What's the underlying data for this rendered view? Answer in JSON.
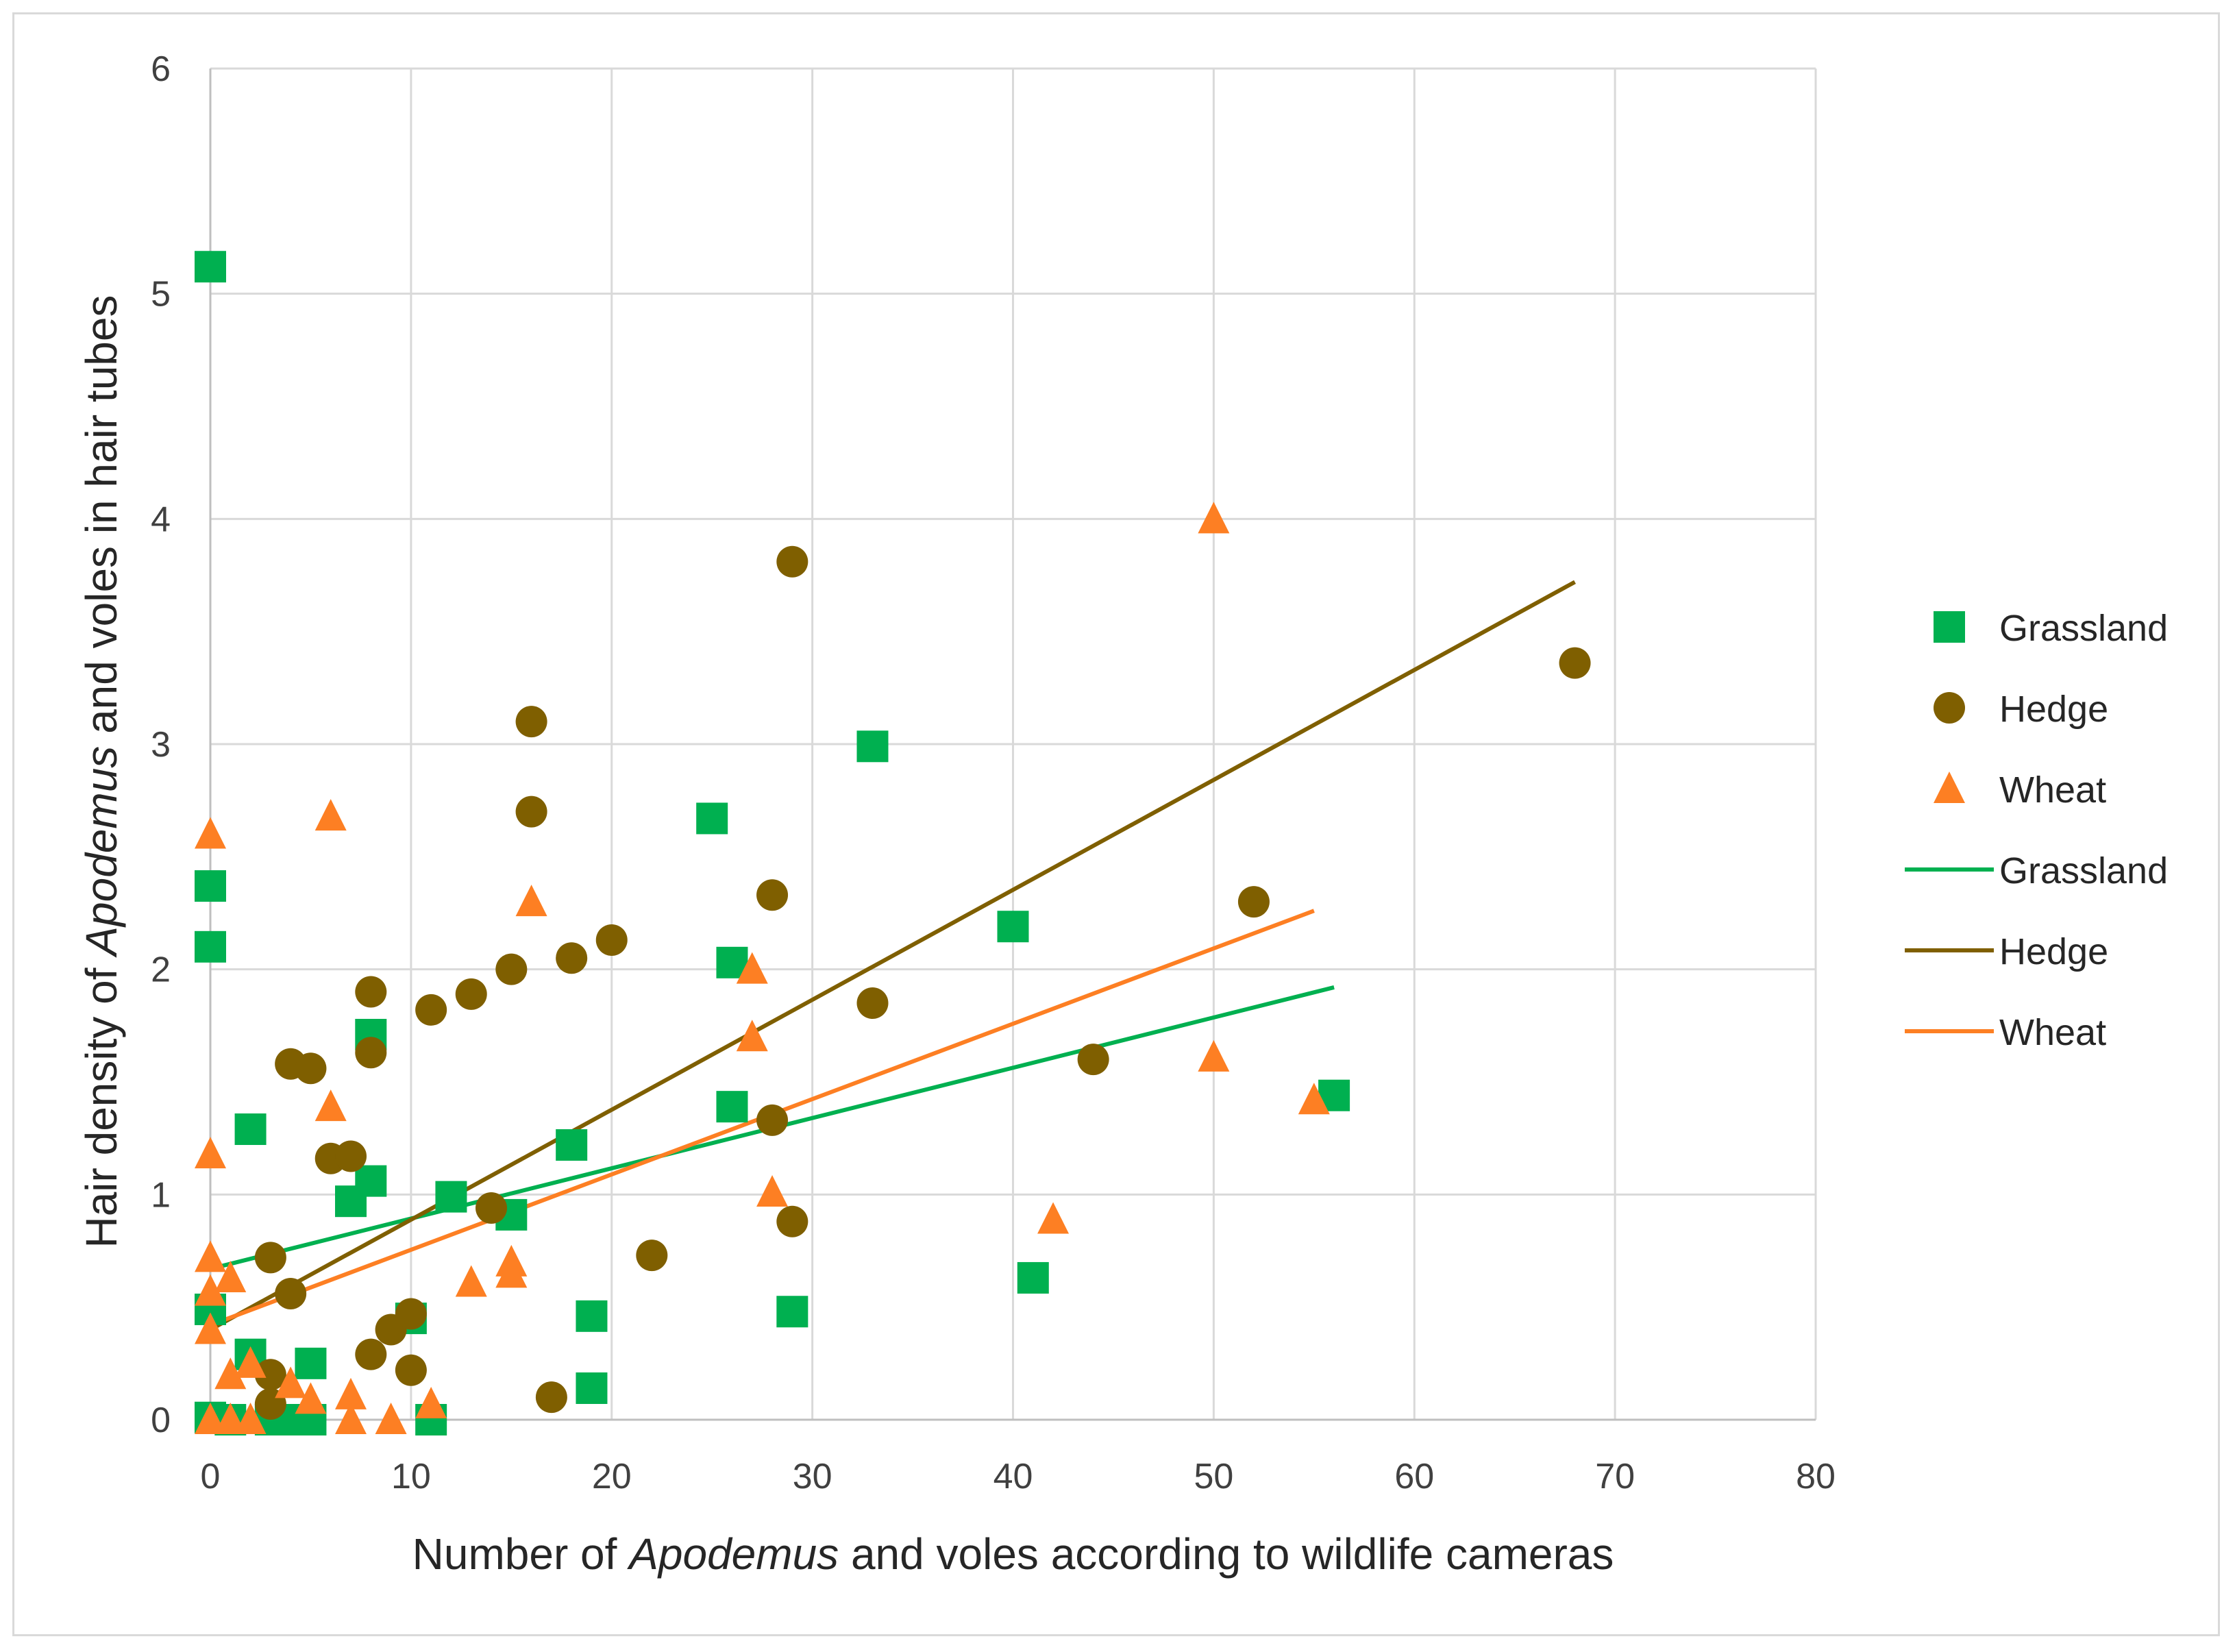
{
  "chart_data": {
    "type": "scatter",
    "title": "",
    "xlabel_parts": [
      {
        "text": "Number of ",
        "italic": false
      },
      {
        "text": "Apodemus",
        "italic": true
      },
      {
        "text": " and voles according to wildlife cameras",
        "italic": false
      }
    ],
    "ylabel_parts": [
      {
        "text": "Hair density of ",
        "italic": false
      },
      {
        "text": "Apodemus",
        "italic": true
      },
      {
        "text": " and voles in hair tubes",
        "italic": false
      }
    ],
    "xlim": [
      0,
      80
    ],
    "ylim": [
      0,
      6
    ],
    "xticks": [
      "0",
      "10",
      "20",
      "30",
      "40",
      "50",
      "60",
      "70",
      "80"
    ],
    "yticks": [
      "0",
      "1",
      "2",
      "3",
      "4",
      "5",
      "6"
    ],
    "grid": true,
    "legend_position": "right",
    "series": [
      {
        "name": "Grassland",
        "marker": "square",
        "color": "#00b050",
        "points": [
          [
            0,
            5.12
          ],
          [
            0,
            2.37
          ],
          [
            0,
            2.1
          ],
          [
            0,
            0.49
          ],
          [
            0,
            0.01
          ],
          [
            1,
            0.0
          ],
          [
            2,
            1.29
          ],
          [
            2,
            0.29
          ],
          [
            3,
            0.0
          ],
          [
            4,
            0.0
          ],
          [
            5,
            0.25
          ],
          [
            5,
            0.0
          ],
          [
            7,
            0.97
          ],
          [
            8,
            1.71
          ],
          [
            8,
            1.06
          ],
          [
            10,
            0.45
          ],
          [
            11,
            0.0
          ],
          [
            12,
            0.99
          ],
          [
            15,
            0.91
          ],
          [
            18,
            1.22
          ],
          [
            19,
            0.46
          ],
          [
            19,
            0.14
          ],
          [
            25,
            2.67
          ],
          [
            26,
            2.03
          ],
          [
            26,
            1.39
          ],
          [
            29,
            0.48
          ],
          [
            33,
            2.99
          ],
          [
            40,
            2.19
          ],
          [
            41,
            0.63
          ],
          [
            56,
            1.44
          ]
        ]
      },
      {
        "name": "Hedge",
        "marker": "circle",
        "color": "#7f5f00",
        "points": [
          [
            3,
            0.72
          ],
          [
            3,
            0.2
          ],
          [
            3,
            0.07
          ],
          [
            4,
            1.58
          ],
          [
            4,
            0.56
          ],
          [
            5,
            1.56
          ],
          [
            6,
            1.16
          ],
          [
            7,
            1.17
          ],
          [
            8,
            1.9
          ],
          [
            8,
            1.63
          ],
          [
            8,
            0.29
          ],
          [
            9,
            0.4
          ],
          [
            10,
            0.47
          ],
          [
            10,
            0.22
          ],
          [
            11,
            1.82
          ],
          [
            13,
            1.89
          ],
          [
            14,
            0.94
          ],
          [
            15,
            2.0
          ],
          [
            16,
            3.1
          ],
          [
            16,
            2.7
          ],
          [
            17,
            0.1
          ],
          [
            18,
            2.05
          ],
          [
            20,
            2.13
          ],
          [
            22,
            0.73
          ],
          [
            28,
            2.33
          ],
          [
            28,
            1.33
          ],
          [
            29,
            3.81
          ],
          [
            29,
            0.88
          ],
          [
            33,
            1.85
          ],
          [
            44,
            1.6
          ],
          [
            52,
            2.3
          ],
          [
            68,
            3.36
          ]
        ]
      },
      {
        "name": "Wheat",
        "marker": "triangle",
        "color": "#fd7f23",
        "points": [
          [
            0,
            2.6
          ],
          [
            0,
            1.18
          ],
          [
            0,
            0.72
          ],
          [
            0,
            0.57
          ],
          [
            0,
            0.4
          ],
          [
            0,
            0.0
          ],
          [
            1,
            0.63
          ],
          [
            1,
            0.2
          ],
          [
            1,
            0.0
          ],
          [
            2,
            0.25
          ],
          [
            2,
            0.0
          ],
          [
            4,
            0.16
          ],
          [
            5,
            0.09
          ],
          [
            6,
            2.68
          ],
          [
            6,
            1.39
          ],
          [
            7,
            0.11
          ],
          [
            7,
            0.0
          ],
          [
            9,
            0.0
          ],
          [
            11,
            0.07
          ],
          [
            13,
            0.61
          ],
          [
            15,
            0.7
          ],
          [
            15,
            0.65
          ],
          [
            16,
            2.3
          ],
          [
            27,
            2.0
          ],
          [
            27,
            1.7
          ],
          [
            28,
            1.01
          ],
          [
            42,
            0.89
          ],
          [
            50,
            4.0
          ],
          [
            50,
            1.61
          ],
          [
            55,
            1.42
          ]
        ]
      }
    ],
    "trendlines": [
      {
        "name": "Grassland",
        "color": "#00b050",
        "x": [
          0,
          56
        ],
        "y": [
          0.67,
          1.92
        ]
      },
      {
        "name": "Hedge",
        "color": "#7f5f00",
        "x": [
          0,
          68
        ],
        "y": [
          0.4,
          3.72
        ]
      },
      {
        "name": "Wheat",
        "color": "#fd7f23",
        "x": [
          0,
          55
        ],
        "y": [
          0.42,
          2.26
        ]
      }
    ],
    "legend": [
      {
        "label": "Grassland",
        "kind": "marker",
        "marker": "square",
        "color": "#00b050"
      },
      {
        "label": "Hedge",
        "kind": "marker",
        "marker": "circle",
        "color": "#7f5f00"
      },
      {
        "label": "Wheat",
        "kind": "marker",
        "marker": "triangle",
        "color": "#fd7f23"
      },
      {
        "label": "Grassland",
        "kind": "line",
        "color": "#00b050"
      },
      {
        "label": "Hedge",
        "kind": "line",
        "color": "#7f5f00"
      },
      {
        "label": "Wheat",
        "kind": "line",
        "color": "#fd7f23"
      }
    ]
  }
}
